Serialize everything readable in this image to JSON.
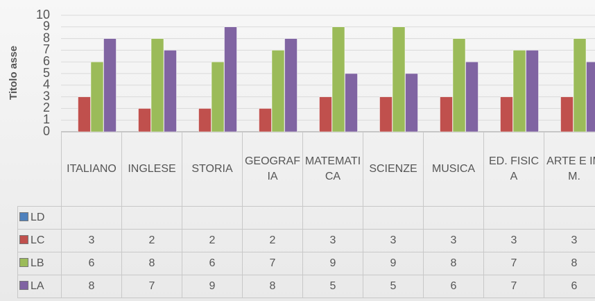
{
  "chart_data": {
    "type": "bar",
    "y_axis_label": "Titolo asse",
    "categories": [
      "ITALIANO",
      "INGLESE",
      "STORIA",
      "GEOGRAFIA",
      "MATEMATICA",
      "SCIENZE",
      "MUSICA",
      "ED. FISICA",
      "ARTE E IMM."
    ],
    "series": [
      {
        "name": "LD",
        "color": "#4f81bd",
        "values": [
          null,
          null,
          null,
          null,
          null,
          null,
          null,
          null,
          null
        ]
      },
      {
        "name": "LC",
        "color": "#c0504d",
        "values": [
          3,
          2,
          2,
          2,
          3,
          3,
          3,
          3,
          3
        ]
      },
      {
        "name": "LB",
        "color": "#9bbb59",
        "values": [
          6,
          8,
          6,
          7,
          9,
          9,
          8,
          7,
          8
        ]
      },
      {
        "name": "LA",
        "color": "#8064a2",
        "values": [
          8,
          7,
          9,
          8,
          5,
          5,
          6,
          7,
          6
        ]
      }
    ],
    "ylim": [
      0,
      10
    ],
    "yticks": [
      0,
      1,
      2,
      3,
      4,
      5,
      6,
      7,
      8,
      9,
      10
    ],
    "grid": true
  }
}
